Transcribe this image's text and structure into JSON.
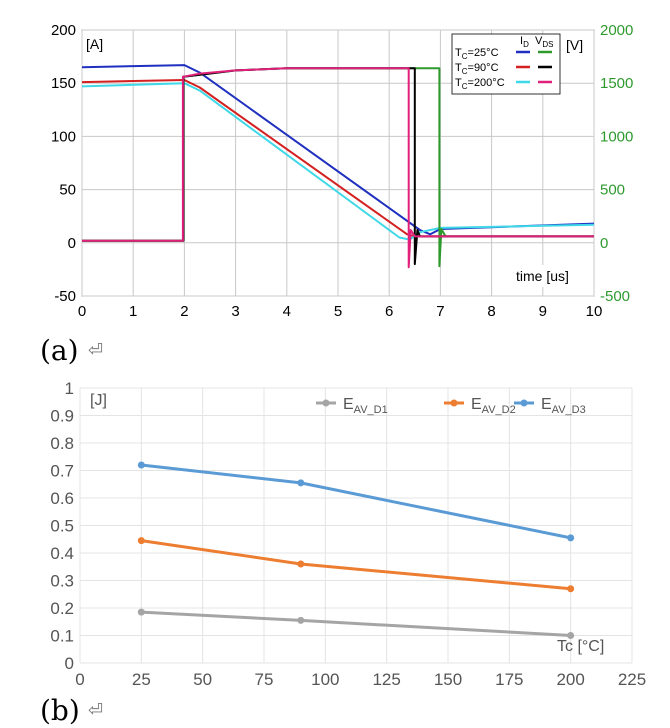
{
  "chart_data": [
    {
      "id": "a",
      "type": "line",
      "caption": "(a)",
      "caption_mark": "⏎",
      "x_ticks": [
        "0",
        "1",
        "2",
        "3",
        "4",
        "5",
        "6",
        "7",
        "8",
        "9",
        "10"
      ],
      "y_left_ticks": [
        "200",
        "150",
        "100",
        "50",
        "0",
        "-50"
      ],
      "y_right_ticks": [
        "2000",
        "1500",
        "1000",
        "500",
        "0",
        "-500"
      ],
      "y_left_unit": "[A]",
      "y_right_unit": "[V]",
      "x_label": "time [us]",
      "xlim": [
        0,
        10
      ],
      "ylim_left": [
        -50,
        200
      ],
      "ylim_right": [
        -500,
        2000
      ],
      "grid": true,
      "legend_position": "top-right",
      "legend_header": [
        "I",
        "D",
        "V",
        "DS"
      ],
      "legend_rows": [
        {
          "label": "T",
          "sub": "C",
          "rest": "=25°C",
          "id_color": "#1f2fbf",
          "vds_color": "#2e9a2e"
        },
        {
          "label": "T",
          "sub": "C",
          "rest": "=90°C",
          "id_color": "#d42020",
          "vds_color": "#000000"
        },
        {
          "label": "T",
          "sub": "C",
          "rest": "=200°C",
          "id_color": "#3fd8e8",
          "vds_color": "#e0207a"
        }
      ],
      "series": [
        {
          "axis": "left",
          "color": "#1f2fbf",
          "points": [
            [
              0,
              165
            ],
            [
              2,
              167
            ],
            [
              2.3,
              160
            ],
            [
              6.6,
              12
            ],
            [
              6.8,
              8
            ],
            [
              7,
              13
            ],
            [
              10,
              18
            ]
          ]
        },
        {
          "axis": "left",
          "color": "#d42020",
          "points": [
            [
              0,
              151
            ],
            [
              2,
              153
            ],
            [
              2.3,
              146
            ],
            [
              6.35,
              8
            ],
            [
              6.5,
              6
            ],
            [
              7,
              6
            ],
            [
              10,
              6
            ]
          ]
        },
        {
          "axis": "left",
          "color": "#3fd8e8",
          "points": [
            [
              0,
              147
            ],
            [
              2,
              150
            ],
            [
              2.3,
              143
            ],
            [
              6.2,
              5
            ],
            [
              6.4,
              3
            ],
            [
              6.6,
              10
            ],
            [
              7,
              14
            ],
            [
              10,
              17
            ]
          ]
        },
        {
          "axis": "right",
          "color": "#2e9a2e",
          "points": [
            [
              0,
              20
            ],
            [
              1.98,
              20
            ],
            [
              1.98,
              1560
            ],
            [
              2.3,
              1580
            ],
            [
              3,
              1620
            ],
            [
              4,
              1640
            ],
            [
              5,
              1640
            ],
            [
              6,
              1640
            ],
            [
              6.98,
              1640
            ],
            [
              6.98,
              -220
            ],
            [
              7.02,
              130
            ],
            [
              7.1,
              60
            ],
            [
              10,
              60
            ]
          ]
        },
        {
          "axis": "right",
          "color": "#000000",
          "points": [
            [
              0,
              20
            ],
            [
              1.98,
              20
            ],
            [
              1.98,
              1560
            ],
            [
              2.3,
              1580
            ],
            [
              3,
              1620
            ],
            [
              4,
              1640
            ],
            [
              5,
              1640
            ],
            [
              6,
              1640
            ],
            [
              6.5,
              1640
            ],
            [
              6.5,
              -200
            ],
            [
              6.55,
              120
            ],
            [
              6.6,
              60
            ],
            [
              10,
              60
            ]
          ]
        },
        {
          "axis": "right",
          "color": "#e0207a",
          "points": [
            [
              0,
              20
            ],
            [
              1.97,
              20
            ],
            [
              1.97,
              1560
            ],
            [
              2.3,
              1590
            ],
            [
              3,
              1620
            ],
            [
              4,
              1640
            ],
            [
              5,
              1640
            ],
            [
              6,
              1640
            ],
            [
              6.38,
              1640
            ],
            [
              6.38,
              -230
            ],
            [
              6.42,
              120
            ],
            [
              6.5,
              60
            ],
            [
              10,
              60
            ]
          ]
        }
      ]
    },
    {
      "id": "b",
      "type": "line",
      "caption": "(b)",
      "caption_mark": "⏎",
      "x_ticks": [
        "0",
        "25",
        "50",
        "75",
        "100",
        "125",
        "150",
        "175",
        "200",
        "225"
      ],
      "y_ticks": [
        "1",
        "0.9",
        "0.8",
        "0.7",
        "0.6",
        "0.5",
        "0.4",
        "0.3",
        "0.2",
        "0.1",
        "0"
      ],
      "y_unit": "[J]",
      "x_label": "Tc [°C]",
      "xlim": [
        0,
        225
      ],
      "ylim": [
        0,
        1
      ],
      "grid": true,
      "legend_position": "top-right",
      "x": [
        25,
        90,
        200
      ],
      "series": [
        {
          "name_main": "E",
          "name_sub": "AV_D1",
          "color": "#a5a5a5",
          "values": [
            0.185,
            0.155,
            0.1
          ]
        },
        {
          "name_main": "E",
          "name_sub": "AV_D2",
          "color": "#ed7d31",
          "values": [
            0.445,
            0.36,
            0.27
          ]
        },
        {
          "name_main": "E",
          "name_sub": "AV_D3",
          "color": "#5b9bd5",
          "values": [
            0.72,
            0.655,
            0.455
          ]
        }
      ]
    }
  ]
}
